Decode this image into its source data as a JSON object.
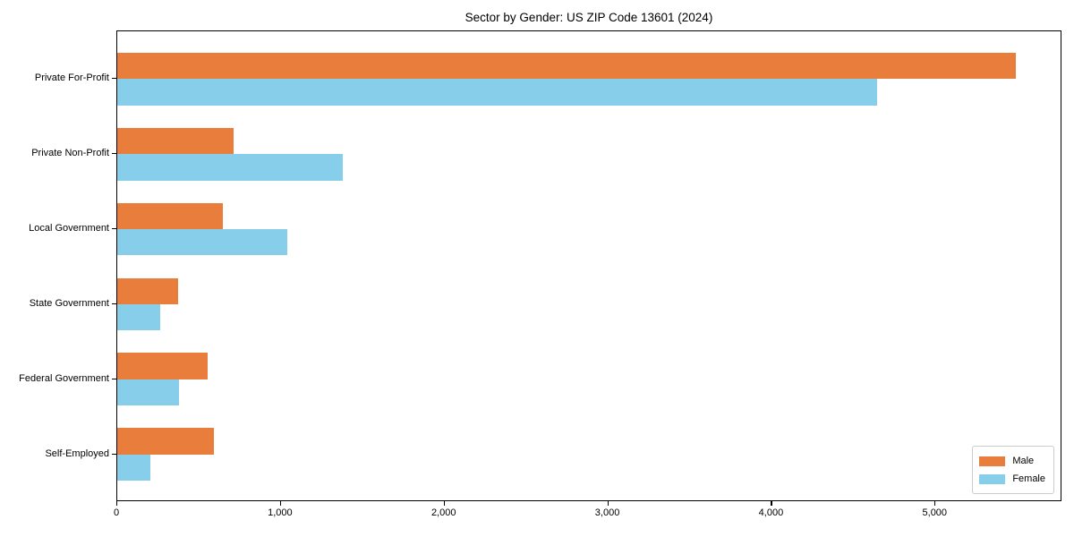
{
  "title": "Sector by Gender: US ZIP Code 13601 (2024)",
  "colors": {
    "male": "#e87d3c",
    "female": "#87ceeb",
    "axis": "#000000",
    "legend_border": "#cccccc",
    "background": "#ffffff"
  },
  "legend": {
    "position": "lower right",
    "items": [
      {
        "label": "Male",
        "color_key": "male"
      },
      {
        "label": "Female",
        "color_key": "female"
      }
    ]
  },
  "x_axis": {
    "tick_labels": [
      "0",
      "1,000",
      "2,000",
      "3,000",
      "4,000",
      "5,000"
    ],
    "tick_values": [
      0,
      1000,
      2000,
      3000,
      4000,
      5000
    ]
  },
  "chart_data": {
    "type": "bar",
    "orientation": "horizontal",
    "title": "Sector by Gender: US ZIP Code 13601 (2024)",
    "categories": [
      "Private For-Profit",
      "Private Non-Profit",
      "Local Government",
      "State Government",
      "Federal Government",
      "Self-Employed"
    ],
    "series": [
      {
        "name": "Male",
        "color": "#e87d3c",
        "values": [
          5500,
          715,
          645,
          370,
          555,
          590
        ]
      },
      {
        "name": "Female",
        "color": "#87ceeb",
        "values": [
          4650,
          1380,
          1040,
          265,
          380,
          205
        ]
      }
    ],
    "xlabel": "",
    "ylabel": "",
    "xlim": [
      0,
      5775
    ],
    "grid": false,
    "legend_position": "lower right"
  }
}
